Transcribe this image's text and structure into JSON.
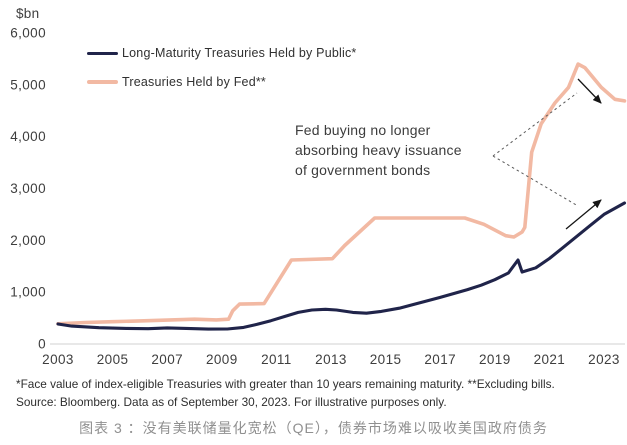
{
  "chart": {
    "y_axis_unit": "$bn",
    "legend": [
      {
        "label": "Long-Maturity Treasuries Held by Public*",
        "color": "#20244a"
      },
      {
        "label": "Treasuries Held by Fed**",
        "color": "#f2b9a3"
      }
    ],
    "annotation": "Fed buying no longer\nabsorbing heavy issuance\nof government bonds"
  },
  "chart_data": {
    "type": "line",
    "title": "",
    "xlabel": "",
    "ylabel": "$bn",
    "xlim": [
      2002.8,
      2024.0
    ],
    "ylim": [
      0,
      6000
    ],
    "grid": false,
    "legend_position": "top-left",
    "x_ticks": [
      2003,
      2005,
      2007,
      2009,
      2011,
      2013,
      2015,
      2017,
      2019,
      2021,
      2023
    ],
    "y_ticks": [
      0,
      1000,
      2000,
      3000,
      4000,
      5000,
      6000
    ],
    "y_tick_labels": [
      "0",
      "1,000",
      "2,000",
      "3,000",
      "4,000",
      "5,000",
      "6,000"
    ],
    "series": [
      {
        "name": "Long-Maturity Treasuries Held by Public*",
        "color": "#20244a",
        "x": [
          2003.0,
          2003.5,
          2004.5,
          2005.5,
          2006.3,
          2007.0,
          2007.7,
          2008.5,
          2009.2,
          2009.8,
          2010.3,
          2010.8,
          2011.3,
          2011.8,
          2012.3,
          2012.8,
          2013.2,
          2013.8,
          2014.3,
          2014.8,
          2015.5,
          2016.0,
          2016.5,
          2017.0,
          2017.5,
          2018.0,
          2018.5,
          2019.0,
          2019.5,
          2019.85,
          2020.0,
          2020.5,
          2021.0,
          2021.5,
          2022.0,
          2022.5,
          2023.0,
          2023.75
        ],
        "values": [
          385,
          345,
          315,
          300,
          295,
          310,
          300,
          288,
          290,
          320,
          380,
          450,
          530,
          610,
          655,
          670,
          655,
          610,
          595,
          625,
          690,
          760,
          830,
          900,
          975,
          1050,
          1135,
          1240,
          1370,
          1620,
          1390,
          1470,
          1650,
          1860,
          2075,
          2290,
          2500,
          2720
        ]
      },
      {
        "name": "Treasuries Held by Fed**",
        "color": "#f2b9a3",
        "x": [
          2003.0,
          2004.0,
          2005.0,
          2006.0,
          2007.0,
          2008.0,
          2008.8,
          2009.25,
          2009.4,
          2009.65,
          2010.55,
          2011.0,
          2011.55,
          2013.05,
          2013.5,
          2014.6,
          2017.9,
          2018.6,
          2019.4,
          2019.7,
          2020.0,
          2020.1,
          2020.35,
          2020.7,
          2021.2,
          2021.7,
          2022.05,
          2022.3,
          2022.9,
          2023.4,
          2023.75
        ],
        "values": [
          390,
          415,
          430,
          445,
          462,
          478,
          465,
          478,
          640,
          770,
          780,
          1160,
          1620,
          1645,
          1900,
          2430,
          2430,
          2310,
          2090,
          2065,
          2160,
          2250,
          3700,
          4250,
          4650,
          4950,
          5400,
          5330,
          4950,
          4720,
          4690
        ]
      }
    ]
  },
  "footnotes": {
    "line1": "*Face value of index-eligible Treasuries with greater than 10 years remaining maturity. **Excluding bills.",
    "line2": "Source: Bloomberg. Data as of September 30, 2023. For illustrative purposes only."
  },
  "caption": "图表 3 ：没有美联储量化宽松（QE），债券市场难以吸收美国政府债务"
}
